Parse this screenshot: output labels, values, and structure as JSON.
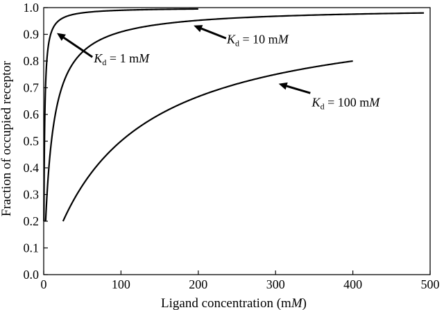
{
  "chart_data": {
    "type": "line",
    "title": "",
    "xlabel": "Ligand concentration (mM)",
    "xlabel_parts": {
      "main": "Ligand concentration (m",
      "italic": "M",
      "close": ")"
    },
    "ylabel": "Fraction of occupied receptor",
    "xlim": [
      0,
      500
    ],
    "ylim": [
      0,
      1.0
    ],
    "xticks": [
      0,
      100,
      200,
      300,
      400,
      500
    ],
    "xtick_labels": [
      "0",
      "100",
      "200",
      "300",
      "400",
      "500"
    ],
    "yticks": [
      0,
      0.1,
      0.2,
      0.3,
      0.4,
      0.5,
      0.6,
      0.7,
      0.8,
      0.9,
      1.0
    ],
    "ytick_labels": [
      "0.0",
      "0.1",
      "0.2",
      "0.3",
      "0.4",
      "0.5",
      "0.6",
      "0.7",
      "0.8",
      "0.9",
      "1.0"
    ],
    "grid": false,
    "legend": "none",
    "model": "y = x / (x + Kd)",
    "series": [
      {
        "kd": 1,
        "x_range": [
          0.25,
          200
        ],
        "label": {
          "pre": "K",
          "sub": "d",
          "post": " = 1 m",
          "unit": "M",
          "text": "Kd = 1 mM"
        }
      },
      {
        "kd": 10,
        "x_range": [
          2.5,
          492
        ],
        "label": {
          "pre": "K",
          "sub": "d",
          "post": " = 10 m",
          "unit": "M",
          "text": "Kd = 10 mM"
        }
      },
      {
        "kd": 100,
        "x_range": [
          25,
          400
        ],
        "label": {
          "pre": "K",
          "sub": "d",
          "post": " = 100 m",
          "unit": "M",
          "text": "Kd = 100 mM"
        }
      }
    ],
    "annotations": [
      {
        "series": 0,
        "text_at": [
          65,
          0.81
        ],
        "arrow_from": [
          63,
          0.815
        ],
        "arrow_to": [
          17,
          0.905
        ]
      },
      {
        "series": 1,
        "text_at": [
          237,
          0.882
        ],
        "arrow_from": [
          236,
          0.885
        ],
        "arrow_to": [
          194,
          0.933
        ]
      },
      {
        "series": 2,
        "text_at": [
          347,
          0.645
        ],
        "arrow_from": [
          345,
          0.68
        ],
        "arrow_to": [
          304,
          0.715
        ]
      }
    ]
  }
}
